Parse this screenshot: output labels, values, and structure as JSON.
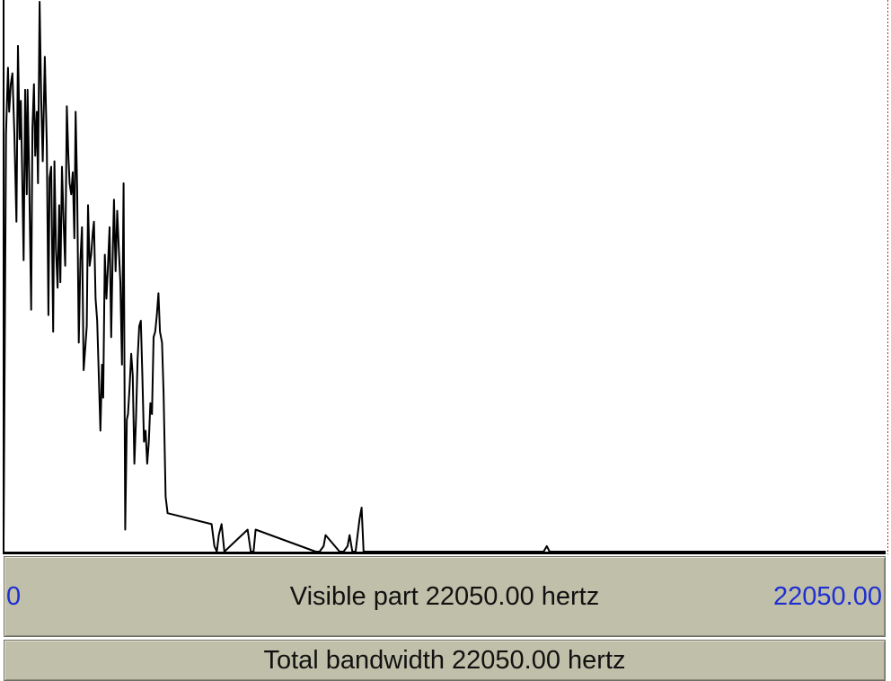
{
  "window": {
    "visible_part_label": "Visible part 22050.00 hertz",
    "visible_range_start": "0",
    "visible_range_end": "22050.00",
    "total_bandwidth_label": "Total bandwidth 22050.00 hertz"
  },
  "colors": {
    "spectrum_line": "#000000",
    "bar_background": "#c0bfa9",
    "range_value_color": "#1f2fd0",
    "selection_marker": "#cc2222"
  },
  "chart_data": {
    "type": "line",
    "xlabel": "",
    "ylabel": "",
    "xlim": [
      0,
      22050
    ],
    "x_unit": "Hz",
    "ylim": [
      0,
      1
    ],
    "series": [
      {
        "color": "#000000",
        "x": [
          0,
          60,
          110,
          140,
          180,
          220,
          270,
          320,
          360,
          400,
          430,
          470,
          500,
          540,
          580,
          600,
          640,
          690,
          720,
          760,
          790,
          830,
          860,
          900,
          940,
          980,
          1030,
          1080,
          1120,
          1150,
          1190,
          1240,
          1270,
          1310,
          1350,
          1390,
          1420,
          1460,
          1500,
          1540,
          1580,
          1620,
          1650,
          1690,
          1730,
          1770,
          1800,
          1840,
          1880,
          1920,
          1960,
          2000,
          2040,
          2080,
          2110,
          2150,
          2190,
          2230,
          2260,
          2300,
          2340,
          2380,
          2420,
          2460,
          2490,
          2530,
          2570,
          2610,
          2650,
          2690,
          2720,
          2760,
          2800,
          2840,
          2880,
          2920,
          2960,
          3000,
          3040,
          3080,
          3110,
          3150,
          3190,
          3230,
          3270,
          3310,
          3350,
          3390,
          3430,
          3470,
          3510,
          3550,
          3590,
          3630,
          3670,
          3710,
          3750,
          3790,
          3830,
          3870,
          3910,
          3960,
          4000,
          4050,
          4100,
          5200,
          5270,
          5330,
          5380,
          5450,
          5520,
          6100,
          6180,
          6250,
          6300,
          7800,
          7900,
          8000,
          8050,
          8400,
          8500,
          8600,
          8650,
          8720,
          8800,
          8850,
          8900,
          8950,
          9000,
          13500,
          13580,
          13650,
          22050
        ],
        "y": [
          0.02,
          0.76,
          0.88,
          0.8,
          0.85,
          0.87,
          0.76,
          0.6,
          0.92,
          0.75,
          0.82,
          0.67,
          0.53,
          0.84,
          0.65,
          0.84,
          0.68,
          0.44,
          0.77,
          0.85,
          0.72,
          0.8,
          0.67,
          1.0,
          0.82,
          0.71,
          0.9,
          0.74,
          0.43,
          0.68,
          0.7,
          0.4,
          0.71,
          0.55,
          0.48,
          0.63,
          0.49,
          0.7,
          0.6,
          0.52,
          0.81,
          0.72,
          0.67,
          0.65,
          0.69,
          0.57,
          0.8,
          0.66,
          0.38,
          0.53,
          0.59,
          0.33,
          0.37,
          0.41,
          0.63,
          0.52,
          0.54,
          0.58,
          0.6,
          0.46,
          0.42,
          0.32,
          0.22,
          0.34,
          0.28,
          0.54,
          0.46,
          0.52,
          0.59,
          0.39,
          0.51,
          0.64,
          0.51,
          0.62,
          0.55,
          0.49,
          0.34,
          0.67,
          0.04,
          0.24,
          0.25,
          0.3,
          0.36,
          0.32,
          0.16,
          0.24,
          0.35,
          0.41,
          0.42,
          0.32,
          0.2,
          0.22,
          0.16,
          0.2,
          0.27,
          0.25,
          0.39,
          0.4,
          0.43,
          0.47,
          0.4,
          0.38,
          0.29,
          0.1,
          0.07,
          0.05,
          0.01,
          0.0,
          0.03,
          0.05,
          0.0,
          0.04,
          0.0,
          0.0,
          0.04,
          0.0,
          0.0,
          0.01,
          0.03,
          0.0,
          0.0,
          0.01,
          0.03,
          0.0,
          0.0,
          0.03,
          0.06,
          0.08,
          0.0,
          0.0,
          0.01,
          0.0,
          0.0
        ]
      }
    ]
  }
}
